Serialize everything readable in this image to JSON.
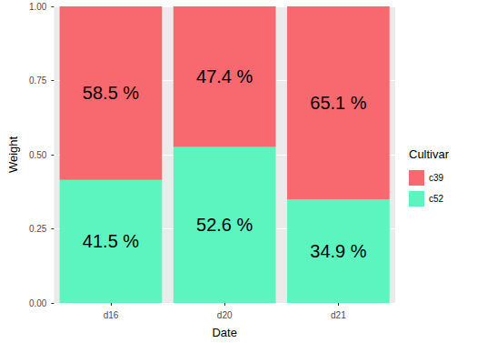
{
  "chart_data": {
    "type": "bar",
    "stacked": true,
    "data_labels": true,
    "grid": true,
    "legend": "right",
    "legend_title": "Cultivar",
    "x_label": "Date",
    "y_label": "Weight",
    "categories": [
      "d16",
      "d20",
      "d21"
    ],
    "series": [
      {
        "name": "c39",
        "color": "#F8696F",
        "values": [
          0.585,
          0.474,
          0.651
        ],
        "value_labels": [
          "58.5 %",
          "47.4 %",
          "65.1 %"
        ]
      },
      {
        "name": "c52",
        "color": "#5CF5C0",
        "values": [
          0.415,
          0.526,
          0.349
        ],
        "value_labels": [
          "41.5 %",
          "52.6 %",
          "34.9 %"
        ]
      }
    ],
    "ylim": [
      0,
      1
    ],
    "yticks": [
      {
        "value": 0,
        "label": "0.00"
      },
      {
        "value": 0.25,
        "label": "0.25"
      },
      {
        "value": 0.5,
        "label": "0.50"
      },
      {
        "value": 0.75,
        "label": "0.75"
      },
      {
        "value": 1,
        "label": "1.00"
      }
    ]
  }
}
